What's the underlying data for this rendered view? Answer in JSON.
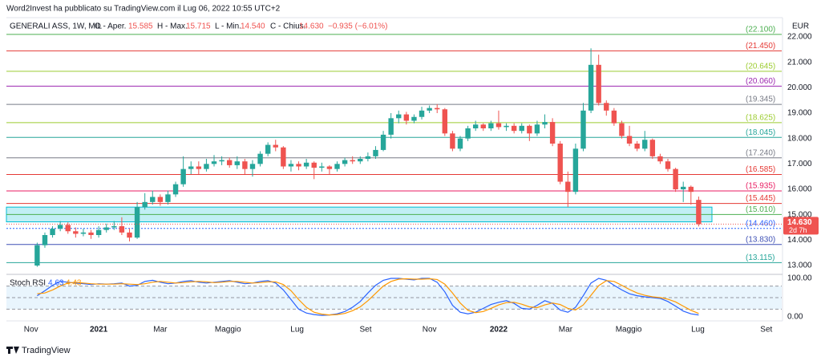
{
  "header": {
    "publisher": "Word2Invest ha pubblicato su TradingView.com il Lug 06, 2022 10:55 UTC+2",
    "brand": "TradingView"
  },
  "chart_data": {
    "type": "candlestick",
    "symbol": "GENERALI ASS, 1W, MIL",
    "open_label": "O - Aper.",
    "open": "15.585",
    "high_label": "H - Max.",
    "high": "15.715",
    "low_label": "L - Min.",
    "low": "14.540",
    "close_label": "C - Chius.",
    "close": "14.630",
    "change": "−0.935 (−6.01%)",
    "currency": "EUR",
    "up_color": "#26a69a",
    "down_color": "#ef5350",
    "last_price": {
      "value": 14.63,
      "label": "14.630"
    },
    "countdown": "2d 7h",
    "zone": [
      14.72,
      15.3
    ],
    "xlim": [
      -4,
      96.8
    ],
    "xticks": [
      {
        "value": -0.8,
        "label": "Nov"
      },
      {
        "value": 8.0,
        "label": "2021"
      },
      {
        "value": 16.0,
        "label": "Mar"
      },
      {
        "value": 24.8,
        "label": "Maggio"
      },
      {
        "value": 33.8,
        "label": "Lug"
      },
      {
        "value": 42.7,
        "label": "Set"
      },
      {
        "value": 51.0,
        "label": "Nov"
      },
      {
        "value": 60.0,
        "label": "2022"
      },
      {
        "value": 68.7,
        "label": "Mar"
      },
      {
        "value": 76.9,
        "label": "Maggio"
      },
      {
        "value": 85.9,
        "label": "Lug"
      },
      {
        "value": 94.8,
        "label": "Set"
      }
    ],
    "ylim": [
      12.6,
      22.5
    ],
    "yticks": [
      {
        "value": 22,
        "label": "22.000"
      },
      {
        "value": 21,
        "label": "21.000"
      },
      {
        "value": 20,
        "label": "20.000"
      },
      {
        "value": 19,
        "label": "19.000"
      },
      {
        "value": 18,
        "label": "18.000"
      },
      {
        "value": 17,
        "label": "17.000"
      },
      {
        "value": 16,
        "label": "16.000"
      },
      {
        "value": 15,
        "label": "15.000"
      },
      {
        "value": 14,
        "label": "14.000"
      },
      {
        "value": 13,
        "label": "13.000"
      }
    ],
    "levels": [
      {
        "value": 22.1,
        "label": "(22.100)",
        "color": "#4caf50"
      },
      {
        "value": 21.45,
        "label": "(21.450)",
        "color": "#e53935"
      },
      {
        "value": 20.645,
        "label": "(20.645)",
        "color": "#9ccc30"
      },
      {
        "value": 20.06,
        "label": "(20.060)",
        "color": "#9c27b0"
      },
      {
        "value": 19.345,
        "label": "(19.345)",
        "color": "#787b86"
      },
      {
        "value": 18.625,
        "label": "(18.625)",
        "color": "#9ccc30"
      },
      {
        "value": 18.045,
        "label": "(18.045)",
        "color": "#26a69a"
      },
      {
        "value": 17.24,
        "label": "(17.240)",
        "color": "#787b86"
      },
      {
        "value": 16.585,
        "label": "(16.585)",
        "color": "#e53935"
      },
      {
        "value": 15.935,
        "label": "(15.935)",
        "color": "#e91e63"
      },
      {
        "value": 15.445,
        "label": "(15.445)",
        "color": "#e53935"
      },
      {
        "value": 15.01,
        "label": "(15.010)",
        "color": "#4caf50"
      },
      {
        "value": 14.46,
        "label": "(14.460)",
        "color": "#2962ff"
      },
      {
        "value": 13.83,
        "label": "(13.830)",
        "color": "#3f51b5"
      },
      {
        "value": 13.115,
        "label": "(13.115)",
        "color": "#26a69a"
      }
    ],
    "candles": [
      [
        13.0,
        13.9,
        12.95,
        13.8
      ],
      [
        13.8,
        14.3,
        13.7,
        14.2
      ],
      [
        14.2,
        14.55,
        14.1,
        14.45
      ],
      [
        14.45,
        14.75,
        14.35,
        14.6
      ],
      [
        14.6,
        14.7,
        14.25,
        14.35
      ],
      [
        14.35,
        14.5,
        14.1,
        14.25
      ],
      [
        14.25,
        14.45,
        14.15,
        14.3
      ],
      [
        14.3,
        14.4,
        14.05,
        14.2
      ],
      [
        14.2,
        14.55,
        14.1,
        14.4
      ],
      [
        14.4,
        14.65,
        14.3,
        14.5
      ],
      [
        14.5,
        14.75,
        14.4,
        14.55
      ],
      [
        14.55,
        14.9,
        14.2,
        14.3
      ],
      [
        14.3,
        14.45,
        13.95,
        14.1
      ],
      [
        14.1,
        15.5,
        14.05,
        15.3
      ],
      [
        15.3,
        15.85,
        15.2,
        15.5
      ],
      [
        15.5,
        15.95,
        15.4,
        15.7
      ],
      [
        15.7,
        15.8,
        15.35,
        15.5
      ],
      [
        15.5,
        15.95,
        15.4,
        15.8
      ],
      [
        15.8,
        16.3,
        15.7,
        16.2
      ],
      [
        16.2,
        17.3,
        16.1,
        16.8
      ],
      [
        16.8,
        17.1,
        16.6,
        16.9
      ],
      [
        16.9,
        17.1,
        16.6,
        16.8
      ],
      [
        16.8,
        17.2,
        16.7,
        17.0
      ],
      [
        17.0,
        17.35,
        16.9,
        17.1
      ],
      [
        17.1,
        17.3,
        16.95,
        17.15
      ],
      [
        17.15,
        17.25,
        16.85,
        16.95
      ],
      [
        16.95,
        17.3,
        16.8,
        17.1
      ],
      [
        17.1,
        17.2,
        16.6,
        16.8
      ],
      [
        16.8,
        17.15,
        16.5,
        17.0
      ],
      [
        17.0,
        17.5,
        16.9,
        17.4
      ],
      [
        17.4,
        17.85,
        17.3,
        17.75
      ],
      [
        17.75,
        17.95,
        17.5,
        17.65
      ],
      [
        17.65,
        17.7,
        16.8,
        16.9
      ],
      [
        16.9,
        17.15,
        16.7,
        17.0
      ],
      [
        17.0,
        17.1,
        16.75,
        16.9
      ],
      [
        16.9,
        17.2,
        16.8,
        17.05
      ],
      [
        17.05,
        17.1,
        16.4,
        16.85
      ],
      [
        16.85,
        17.05,
        16.7,
        16.9
      ],
      [
        16.9,
        16.95,
        16.6,
        16.8
      ],
      [
        16.8,
        17.1,
        16.7,
        17.0
      ],
      [
        17.0,
        17.25,
        16.9,
        17.15
      ],
      [
        17.15,
        17.3,
        17.0,
        17.1
      ],
      [
        17.1,
        17.3,
        17.0,
        17.2
      ],
      [
        17.2,
        17.45,
        17.1,
        17.3
      ],
      [
        17.3,
        17.7,
        17.2,
        17.55
      ],
      [
        17.55,
        18.3,
        17.5,
        18.15
      ],
      [
        18.15,
        19.0,
        18.0,
        18.8
      ],
      [
        18.8,
        19.1,
        18.6,
        18.95
      ],
      [
        18.95,
        19.05,
        18.55,
        18.7
      ],
      [
        18.7,
        18.95,
        18.6,
        18.85
      ],
      [
        18.85,
        19.25,
        18.75,
        19.1
      ],
      [
        19.1,
        19.3,
        19.0,
        19.2
      ],
      [
        19.2,
        19.35,
        19.0,
        19.15
      ],
      [
        19.15,
        19.2,
        18.1,
        18.2
      ],
      [
        18.2,
        18.3,
        17.5,
        17.6
      ],
      [
        17.6,
        18.1,
        17.5,
        18.0
      ],
      [
        18.0,
        18.5,
        17.9,
        18.4
      ],
      [
        18.4,
        18.7,
        18.3,
        18.55
      ],
      [
        18.55,
        18.6,
        18.3,
        18.4
      ],
      [
        18.4,
        18.7,
        18.3,
        18.6
      ],
      [
        18.6,
        19.1,
        18.35,
        18.45
      ],
      [
        18.45,
        18.6,
        18.3,
        18.5
      ],
      [
        18.5,
        18.6,
        18.2,
        18.3
      ],
      [
        18.3,
        18.6,
        18.2,
        18.5
      ],
      [
        18.5,
        18.55,
        17.9,
        18.2
      ],
      [
        18.2,
        18.7,
        18.1,
        18.55
      ],
      [
        18.55,
        18.95,
        18.4,
        18.65
      ],
      [
        18.65,
        18.8,
        17.7,
        17.8
      ],
      [
        17.8,
        17.9,
        16.2,
        16.3
      ],
      [
        16.3,
        16.7,
        15.3,
        15.9
      ],
      [
        15.9,
        17.8,
        15.8,
        17.6
      ],
      [
        17.6,
        19.4,
        17.5,
        19.1
      ],
      [
        19.1,
        21.55,
        19.0,
        20.9
      ],
      [
        20.9,
        21.3,
        19.3,
        19.4
      ],
      [
        19.4,
        19.5,
        18.9,
        19.1
      ],
      [
        19.1,
        19.2,
        18.5,
        18.6
      ],
      [
        18.6,
        18.7,
        18.0,
        18.1
      ],
      [
        18.1,
        18.5,
        17.7,
        17.8
      ],
      [
        17.8,
        17.9,
        17.5,
        17.6
      ],
      [
        17.6,
        18.3,
        17.5,
        17.95
      ],
      [
        17.95,
        18.0,
        17.2,
        17.3
      ],
      [
        17.3,
        17.4,
        17.0,
        17.1
      ],
      [
        17.1,
        17.2,
        16.7,
        16.8
      ],
      [
        16.8,
        16.85,
        15.9,
        16.0
      ],
      [
        16.0,
        16.3,
        15.5,
        16.1
      ],
      [
        16.1,
        16.15,
        15.4,
        15.9
      ],
      [
        15.585,
        15.715,
        14.54,
        14.63
      ]
    ],
    "indicator": {
      "name": "Stoch RSI",
      "ylim": [
        0,
        100
      ],
      "yticks": [
        {
          "value": 100,
          "label": "100.00"
        },
        {
          "value": 0,
          "label": "0.00"
        }
      ],
      "band": [
        20,
        80
      ],
      "bands": [
        80,
        50,
        20
      ],
      "series": [
        {
          "name": "4.63",
          "color": "#2962ff",
          "values": [
            55,
            68,
            82,
            92,
            90,
            88,
            86,
            84,
            86,
            85,
            86,
            88,
            80,
            82,
            92,
            95,
            90,
            86,
            88,
            92,
            94,
            90,
            88,
            90,
            92,
            94,
            90,
            86,
            88,
            92,
            94,
            88,
            70,
            45,
            20,
            10,
            6,
            4,
            5,
            8,
            14,
            25,
            40,
            62,
            82,
            95,
            100,
            100,
            98,
            96,
            100,
            100,
            90,
            65,
            30,
            12,
            8,
            12,
            22,
            32,
            38,
            42,
            35,
            22,
            20,
            30,
            42,
            35,
            18,
            12,
            25,
            55,
            88,
            100,
            95,
            82,
            70,
            60,
            55,
            52,
            50,
            48,
            40,
            28,
            15,
            8,
            5
          ]
        },
        {
          "name": "4.43",
          "color": "#ff9800",
          "values": [
            60,
            62,
            70,
            80,
            88,
            90,
            88,
            86,
            85,
            85,
            85,
            86,
            85,
            84,
            86,
            90,
            92,
            90,
            88,
            89,
            91,
            92,
            91,
            89,
            90,
            92,
            92,
            90,
            88,
            89,
            91,
            91,
            84,
            68,
            45,
            25,
            12,
            7,
            5,
            6,
            9,
            16,
            26,
            42,
            61,
            80,
            92,
            98,
            99,
            98,
            98,
            99,
            97,
            85,
            62,
            36,
            17,
            11,
            14,
            22,
            31,
            37,
            38,
            33,
            26,
            24,
            31,
            36,
            32,
            22,
            18,
            31,
            56,
            81,
            94,
            92,
            82,
            71,
            62,
            56,
            52,
            50,
            46,
            39,
            28,
            17,
            9
          ]
        }
      ]
    }
  }
}
